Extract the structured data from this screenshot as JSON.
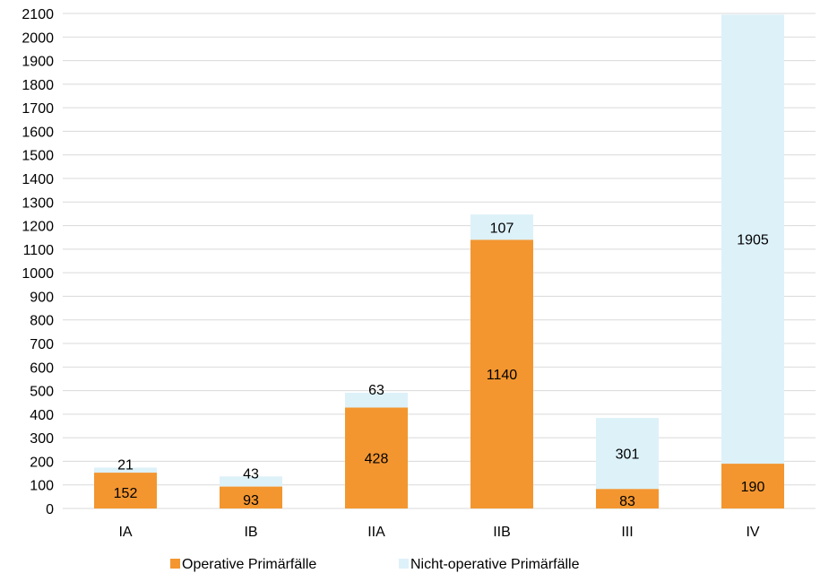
{
  "chart_data": {
    "type": "bar",
    "stacked": true,
    "categories": [
      "IA",
      "IB",
      "IIA",
      "IIB",
      "III",
      "IV"
    ],
    "series": [
      {
        "name": "Operative Primärfälle",
        "values": [
          152,
          93,
          428,
          1140,
          83,
          190
        ],
        "color": "#F39630"
      },
      {
        "name": "Nicht-operative Primärfälle",
        "values": [
          21,
          43,
          63,
          107,
          301,
          1905
        ],
        "color": "#DDF1F9"
      }
    ],
    "ylim": [
      0,
      2100
    ],
    "ytick_step": 100,
    "grid": true,
    "gridline_color": "#D9D9D9",
    "legend_position": "bottom",
    "title": "",
    "xlabel": "",
    "ylabel": ""
  }
}
